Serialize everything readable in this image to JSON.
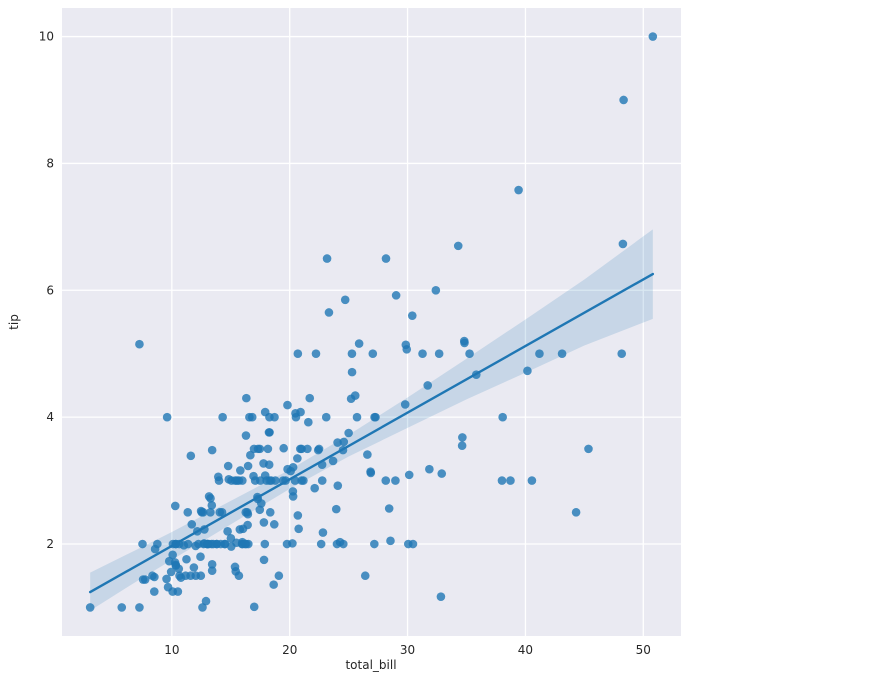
{
  "chart_data": {
    "type": "scatter",
    "title": "",
    "xlabel": "total_bill",
    "ylabel": "tip",
    "xlim": [
      0.68,
      53.2
    ],
    "ylim": [
      0.55,
      10.45
    ],
    "xticks": [
      10,
      20,
      30,
      40,
      50
    ],
    "yticks": [
      2,
      4,
      6,
      8,
      10
    ],
    "grid": true,
    "legend": null,
    "colors": {
      "point": "#1f77b4",
      "line": "#1f77b4",
      "band": "#1f77b4",
      "axes_bg": "#eaeaf2",
      "grid": "#ffffff",
      "tick": "#262626"
    },
    "points": [
      [
        16.99,
        1.01
      ],
      [
        10.34,
        1.66
      ],
      [
        21.01,
        3.5
      ],
      [
        23.68,
        3.31
      ],
      [
        24.59,
        3.61
      ],
      [
        25.29,
        4.71
      ],
      [
        8.77,
        2.0
      ],
      [
        26.88,
        3.12
      ],
      [
        15.04,
        1.96
      ],
      [
        14.78,
        3.23
      ],
      [
        10.27,
        1.71
      ],
      [
        35.26,
        5.0
      ],
      [
        15.42,
        1.57
      ],
      [
        18.43,
        3.0
      ],
      [
        14.83,
        3.02
      ],
      [
        21.58,
        3.92
      ],
      [
        10.33,
        1.67
      ],
      [
        16.29,
        3.71
      ],
      [
        16.97,
        3.5
      ],
      [
        20.65,
        3.35
      ],
      [
        17.92,
        4.08
      ],
      [
        20.29,
        2.75
      ],
      [
        15.77,
        2.23
      ],
      [
        39.42,
        7.58
      ],
      [
        19.82,
        3.18
      ],
      [
        17.81,
        2.34
      ],
      [
        13.37,
        2.0
      ],
      [
        12.69,
        2.0
      ],
      [
        21.7,
        4.3
      ],
      [
        19.65,
        3.0
      ],
      [
        9.55,
        1.45
      ],
      [
        18.35,
        2.5
      ],
      [
        15.06,
        3.0
      ],
      [
        20.69,
        2.45
      ],
      [
        17.78,
        3.27
      ],
      [
        24.06,
        3.6
      ],
      [
        16.31,
        2.0
      ],
      [
        16.93,
        3.07
      ],
      [
        18.69,
        2.31
      ],
      [
        31.27,
        5.0
      ],
      [
        16.04,
        2.24
      ],
      [
        17.46,
        2.54
      ],
      [
        13.94,
        3.06
      ],
      [
        9.68,
        1.32
      ],
      [
        30.4,
        5.6
      ],
      [
        18.29,
        3.0
      ],
      [
        22.23,
        5.0
      ],
      [
        32.4,
        6.0
      ],
      [
        28.55,
        2.05
      ],
      [
        18.04,
        3.0
      ],
      [
        12.54,
        2.5
      ],
      [
        10.29,
        2.6
      ],
      [
        34.81,
        5.2
      ],
      [
        9.94,
        1.56
      ],
      [
        25.56,
        4.34
      ],
      [
        19.49,
        3.51
      ],
      [
        38.01,
        3.0
      ],
      [
        26.41,
        1.5
      ],
      [
        11.24,
        1.76
      ],
      [
        48.27,
        6.73
      ],
      [
        20.29,
        3.21
      ],
      [
        13.81,
        2.0
      ],
      [
        11.02,
        1.98
      ],
      [
        18.29,
        3.76
      ],
      [
        17.59,
        2.64
      ],
      [
        20.08,
        3.15
      ],
      [
        16.45,
        2.47
      ],
      [
        3.07,
        1.0
      ],
      [
        20.23,
        2.01
      ],
      [
        15.01,
        2.09
      ],
      [
        12.02,
        1.97
      ],
      [
        17.07,
        3.0
      ],
      [
        26.86,
        3.14
      ],
      [
        25.28,
        5.0
      ],
      [
        14.73,
        2.2
      ],
      [
        10.51,
        1.25
      ],
      [
        17.92,
        3.08
      ],
      [
        27.2,
        4.0
      ],
      [
        22.76,
        3.0
      ],
      [
        17.29,
        2.71
      ],
      [
        19.44,
        3.0
      ],
      [
        16.66,
        3.4
      ],
      [
        10.07,
        1.83
      ],
      [
        32.68,
        5.0
      ],
      [
        15.98,
        2.03
      ],
      [
        34.83,
        5.17
      ],
      [
        13.03,
        2.0
      ],
      [
        18.28,
        4.0
      ],
      [
        24.71,
        5.85
      ],
      [
        21.16,
        3.0
      ],
      [
        28.97,
        3.0
      ],
      [
        22.49,
        3.5
      ],
      [
        5.75,
        1.0
      ],
      [
        16.32,
        4.3
      ],
      [
        22.75,
        3.25
      ],
      [
        40.17,
        4.73
      ],
      [
        27.28,
        4.0
      ],
      [
        12.03,
        1.5
      ],
      [
        21.01,
        3.0
      ],
      [
        12.46,
        1.5
      ],
      [
        11.35,
        2.5
      ],
      [
        15.38,
        3.0
      ],
      [
        44.3,
        2.5
      ],
      [
        22.42,
        3.48
      ],
      [
        20.92,
        4.08
      ],
      [
        15.36,
        1.64
      ],
      [
        20.49,
        4.06
      ],
      [
        25.21,
        4.29
      ],
      [
        18.24,
        3.76
      ],
      [
        14.31,
        4.0
      ],
      [
        14.0,
        3.0
      ],
      [
        7.25,
        1.0
      ],
      [
        38.07,
        4.0
      ],
      [
        23.95,
        2.55
      ],
      [
        25.71,
        4.0
      ],
      [
        17.31,
        3.5
      ],
      [
        29.93,
        5.07
      ],
      [
        10.65,
        1.5
      ],
      [
        12.43,
        1.8
      ],
      [
        24.08,
        2.92
      ],
      [
        11.69,
        2.31
      ],
      [
        13.42,
        1.68
      ],
      [
        14.26,
        2.5
      ],
      [
        15.95,
        2.0
      ],
      [
        12.48,
        2.52
      ],
      [
        29.8,
        4.2
      ],
      [
        8.52,
        1.48
      ],
      [
        14.52,
        2.0
      ],
      [
        11.38,
        2.0
      ],
      [
        22.82,
        2.18
      ],
      [
        19.08,
        1.5
      ],
      [
        20.27,
        2.83
      ],
      [
        11.17,
        1.5
      ],
      [
        12.26,
        2.0
      ],
      [
        18.26,
        3.25
      ],
      [
        8.51,
        1.25
      ],
      [
        10.33,
        2.0
      ],
      [
        14.15,
        2.0
      ],
      [
        16.0,
        2.0
      ],
      [
        13.16,
        2.75
      ],
      [
        17.47,
        3.5
      ],
      [
        34.3,
        6.7
      ],
      [
        41.19,
        5.0
      ],
      [
        27.05,
        5.0
      ],
      [
        16.43,
        2.3
      ],
      [
        8.35,
        1.5
      ],
      [
        18.64,
        1.36
      ],
      [
        11.87,
        1.63
      ],
      [
        9.78,
        1.73
      ],
      [
        7.51,
        2.0
      ],
      [
        14.07,
        2.5
      ],
      [
        13.13,
        2.0
      ],
      [
        17.26,
        2.74
      ],
      [
        24.55,
        2.0
      ],
      [
        19.77,
        2.0
      ],
      [
        29.85,
        5.14
      ],
      [
        48.17,
        5.0
      ],
      [
        25.0,
        3.75
      ],
      [
        13.39,
        2.61
      ],
      [
        16.49,
        2.0
      ],
      [
        21.5,
        3.5
      ],
      [
        12.66,
        2.5
      ],
      [
        16.21,
        2.0
      ],
      [
        13.81,
        2.0
      ],
      [
        17.51,
        3.0
      ],
      [
        24.52,
        3.48
      ],
      [
        20.76,
        2.24
      ],
      [
        31.71,
        4.5
      ],
      [
        10.59,
        1.61
      ],
      [
        10.63,
        2.0
      ],
      [
        50.81,
        10.0
      ],
      [
        15.81,
        3.16
      ],
      [
        7.25,
        5.15
      ],
      [
        31.85,
        3.18
      ],
      [
        16.82,
        4.0
      ],
      [
        32.9,
        3.11
      ],
      [
        17.89,
        2.0
      ],
      [
        14.48,
        2.0
      ],
      [
        9.6,
        4.0
      ],
      [
        34.63,
        3.55
      ],
      [
        34.65,
        3.68
      ],
      [
        23.33,
        5.65
      ],
      [
        45.35,
        3.5
      ],
      [
        23.17,
        6.5
      ],
      [
        40.55,
        3.0
      ],
      [
        20.69,
        5.0
      ],
      [
        20.9,
        3.5
      ],
      [
        30.46,
        2.0
      ],
      [
        18.15,
        3.5
      ],
      [
        23.1,
        4.0
      ],
      [
        15.69,
        1.5
      ],
      [
        19.81,
        4.19
      ],
      [
        28.44,
        2.56
      ],
      [
        15.48,
        2.02
      ],
      [
        16.58,
        4.0
      ],
      [
        7.56,
        1.44
      ],
      [
        10.34,
        2.0
      ],
      [
        43.11,
        5.0
      ],
      [
        13.0,
        2.0
      ],
      [
        13.51,
        2.0
      ],
      [
        18.71,
        4.0
      ],
      [
        12.74,
        2.01
      ],
      [
        13.0,
        2.0
      ],
      [
        16.4,
        2.5
      ],
      [
        20.53,
        4.0
      ],
      [
        16.47,
        3.23
      ],
      [
        26.59,
        3.41
      ],
      [
        38.73,
        3.0
      ],
      [
        24.27,
        2.03
      ],
      [
        12.76,
        2.23
      ],
      [
        30.06,
        2.0
      ],
      [
        25.89,
        5.16
      ],
      [
        48.33,
        9.0
      ],
      [
        13.27,
        2.5
      ],
      [
        28.17,
        6.5
      ],
      [
        12.9,
        1.1
      ],
      [
        28.15,
        3.0
      ],
      [
        11.59,
        1.5
      ],
      [
        7.74,
        1.44
      ],
      [
        30.14,
        3.09
      ],
      [
        12.16,
        2.2
      ],
      [
        13.42,
        3.48
      ],
      [
        8.58,
        1.92
      ],
      [
        15.98,
        3.0
      ],
      [
        13.42,
        1.58
      ],
      [
        16.27,
        2.5
      ],
      [
        10.09,
        2.0
      ],
      [
        20.45,
        3.0
      ],
      [
        13.28,
        2.72
      ],
      [
        22.12,
        2.88
      ],
      [
        24.01,
        2.0
      ],
      [
        15.69,
        3.0
      ],
      [
        11.61,
        3.39
      ],
      [
        10.77,
        1.47
      ],
      [
        15.53,
        3.0
      ],
      [
        10.07,
        1.25
      ],
      [
        12.6,
        1.0
      ],
      [
        32.83,
        1.17
      ],
      [
        35.83,
        4.67
      ],
      [
        29.03,
        5.92
      ],
      [
        27.18,
        2.0
      ],
      [
        22.67,
        2.0
      ],
      [
        17.82,
        1.75
      ],
      [
        18.78,
        3.0
      ]
    ],
    "regression": {
      "slope": 0.10502,
      "intercept": 0.9203,
      "x_range": [
        3.07,
        50.81
      ],
      "ci_band": [
        {
          "x": 3.07,
          "lo": 0.95,
          "hi": 1.55
        },
        {
          "x": 7.0,
          "lo": 1.41,
          "hi": 1.91
        },
        {
          "x": 10.0,
          "lo": 1.75,
          "hi": 2.19
        },
        {
          "x": 15.0,
          "lo": 2.31,
          "hi": 2.68
        },
        {
          "x": 20.0,
          "lo": 2.87,
          "hi": 3.17
        },
        {
          "x": 25.0,
          "lo": 3.38,
          "hi": 3.72
        },
        {
          "x": 30.0,
          "lo": 3.83,
          "hi": 4.31
        },
        {
          "x": 35.0,
          "lo": 4.28,
          "hi": 4.92
        },
        {
          "x": 40.0,
          "lo": 4.7,
          "hi": 5.54
        },
        {
          "x": 45.0,
          "lo": 5.13,
          "hi": 6.17
        },
        {
          "x": 50.81,
          "lo": 5.55,
          "hi": 6.96
        }
      ]
    }
  }
}
